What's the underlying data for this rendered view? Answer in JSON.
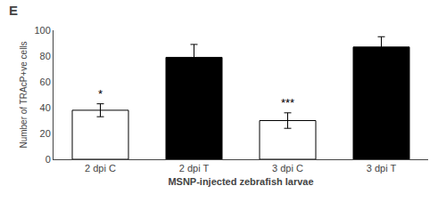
{
  "chart_data": {
    "type": "bar",
    "title": "E",
    "categories": [
      "2 dpi C",
      "2 dpi T",
      "3 dpi C",
      "3 dpi T"
    ],
    "values": [
      38,
      79,
      30,
      87
    ],
    "errors": [
      5,
      10,
      6,
      8
    ],
    "colors": [
      "white",
      "black",
      "white",
      "black"
    ],
    "xlabel": "MSNP-injected zebrafish larvae",
    "ylabel": "Number of TRAcP+ve cells",
    "ylim": [
      0,
      100
    ],
    "yticks": [
      0,
      20,
      40,
      60,
      80,
      100
    ],
    "annotations": [
      {
        "x": "2 dpi C",
        "text": "*"
      },
      {
        "x": "3 dpi C",
        "text": "***"
      }
    ],
    "grid": false
  }
}
